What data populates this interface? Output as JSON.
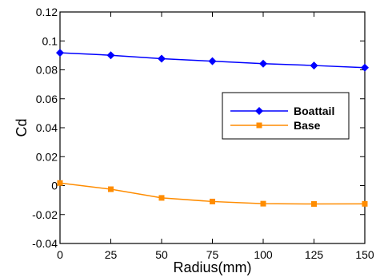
{
  "chart_data": {
    "type": "line",
    "xlabel": "Radius(mm)",
    "ylabel": "Cd",
    "xlim": [
      0,
      150
    ],
    "ylim": [
      -0.04,
      0.12
    ],
    "x_ticks": [
      "0",
      "25",
      "50",
      "75",
      "100",
      "125",
      "150"
    ],
    "y_ticks": [
      "-0.04",
      "-0.02",
      "0",
      "0.02",
      "0.04",
      "0.06",
      "0.08",
      "0.1",
      "0.12"
    ],
    "grid": false,
    "legend_position": "right",
    "x": [
      0,
      25,
      50,
      75,
      100,
      125,
      150
    ],
    "series": [
      {
        "name": "Boattail",
        "color": "#0000ff",
        "marker": "diamond",
        "values": [
          0.0918,
          0.0901,
          0.0877,
          0.086,
          0.0843,
          0.083,
          0.0815
        ]
      },
      {
        "name": "Base",
        "color": "#ff8c00",
        "marker": "square",
        "values": [
          0.0018,
          -0.0025,
          -0.0085,
          -0.011,
          -0.0125,
          -0.0127,
          -0.0126
        ]
      }
    ]
  }
}
